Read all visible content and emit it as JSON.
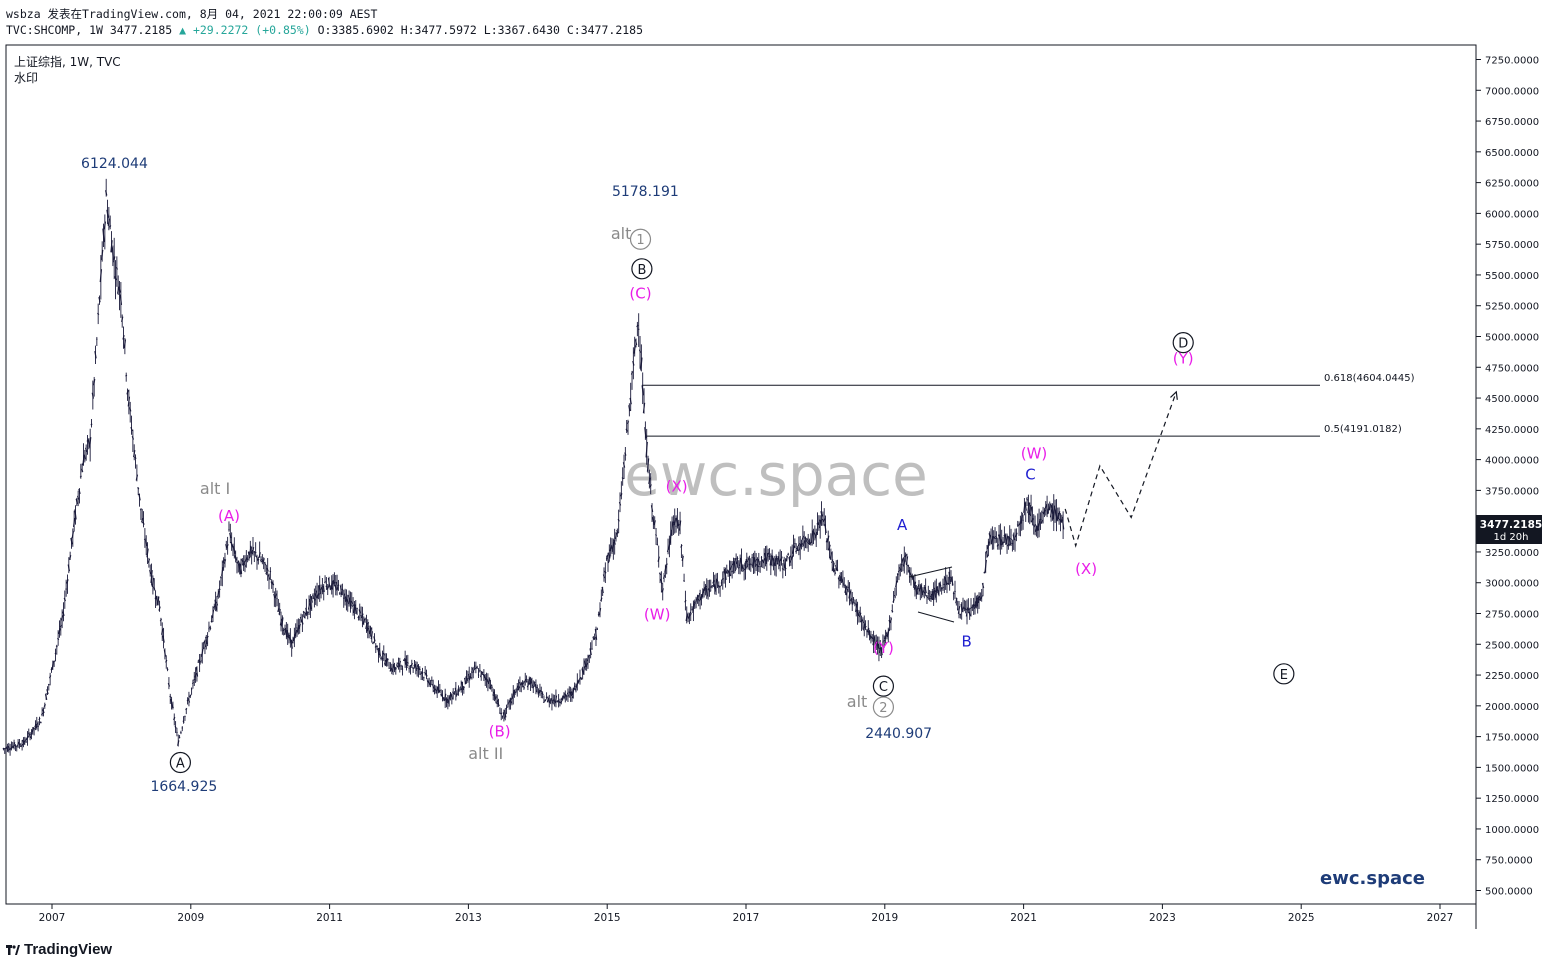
{
  "header": {
    "line1": "wsbza 发表在TradingView.com, 8月 04, 2021 22:00:09 AEST",
    "symbol": "TVC:SHCOMP, 1W 3477.2185",
    "change": "▲ +29.2272 (+0.85%)",
    "ohlc": "O:3385.6902 H:3477.5972 L:3367.6430 C:3477.2185"
  },
  "symbol_info": {
    "name": "上证综指, 1W, TVC",
    "watermark_label": "水印"
  },
  "watermark": "ewc.space",
  "brand_text": "ewc.space",
  "footer": {
    "logo": "TradingView"
  },
  "price_label": {
    "value": "3477.2185",
    "countdown": "1d 20h"
  },
  "colors": {
    "magenta": "#e91ee8",
    "blue": "#1f1fd1",
    "grey": "#8a8a8a",
    "navy": "#1e3c78",
    "candle": "#1a1a3a"
  },
  "chart_data": {
    "type": "line",
    "title": "",
    "y_axis": {
      "min": 500,
      "max": 7250,
      "ticks": [
        "7250.0000",
        "7000.0000",
        "6750.0000",
        "6500.0000",
        "6250.0000",
        "6000.0000",
        "5750.0000",
        "5500.0000",
        "5250.0000",
        "5000.0000",
        "4750.0000",
        "4500.0000",
        "4250.0000",
        "4000.0000",
        "3750.0000",
        "3500.0000",
        "3250.0000",
        "3000.0000",
        "2750.0000",
        "2500.0000",
        "2250.0000",
        "2000.0000",
        "1750.0000",
        "1500.0000",
        "1250.0000",
        "1000.0000",
        "750.0000",
        "500.0000"
      ]
    },
    "x_axis": {
      "ticks": [
        "2007",
        "2009",
        "2011",
        "2013",
        "2015",
        "2017",
        "2019",
        "2021",
        "2023",
        "2025",
        "2027"
      ]
    },
    "series": [
      {
        "values": [
          [
            2006.3,
            1650
          ],
          [
            2006.6,
            1700
          ],
          [
            2006.85,
            1900
          ],
          [
            2007.0,
            2300
          ],
          [
            2007.15,
            2700
          ],
          [
            2007.3,
            3400
          ],
          [
            2007.45,
            4000
          ],
          [
            2007.55,
            4150
          ],
          [
            2007.65,
            5000
          ],
          [
            2007.78,
            6124
          ],
          [
            2007.9,
            5600
          ],
          [
            2008.0,
            5300
          ],
          [
            2008.1,
            4500
          ],
          [
            2008.2,
            4000
          ],
          [
            2008.3,
            3500
          ],
          [
            2008.45,
            3000
          ],
          [
            2008.55,
            2800
          ],
          [
            2008.7,
            2100
          ],
          [
            2008.82,
            1700
          ],
          [
            2008.92,
            1950
          ],
          [
            2009.05,
            2200
          ],
          [
            2009.2,
            2500
          ],
          [
            2009.4,
            2900
          ],
          [
            2009.55,
            3400
          ],
          [
            2009.7,
            3100
          ],
          [
            2009.85,
            3250
          ],
          [
            2010.0,
            3200
          ],
          [
            2010.15,
            3050
          ],
          [
            2010.3,
            2700
          ],
          [
            2010.45,
            2500
          ],
          [
            2010.6,
            2700
          ],
          [
            2010.8,
            2900
          ],
          [
            2010.95,
            3000
          ],
          [
            2011.15,
            2950
          ],
          [
            2011.35,
            2800
          ],
          [
            2011.55,
            2650
          ],
          [
            2011.7,
            2450
          ],
          [
            2011.9,
            2300
          ],
          [
            2012.1,
            2350
          ],
          [
            2012.3,
            2300
          ],
          [
            2012.5,
            2150
          ],
          [
            2012.7,
            2050
          ],
          [
            2012.9,
            2150
          ],
          [
            2013.1,
            2300
          ],
          [
            2013.3,
            2200
          ],
          [
            2013.5,
            1900
          ],
          [
            2013.7,
            2150
          ],
          [
            2013.9,
            2200
          ],
          [
            2014.1,
            2050
          ],
          [
            2014.3,
            2050
          ],
          [
            2014.5,
            2100
          ],
          [
            2014.7,
            2350
          ],
          [
            2014.85,
            2600
          ],
          [
            2015.0,
            3200
          ],
          [
            2015.15,
            3400
          ],
          [
            2015.3,
            4300
          ],
          [
            2015.45,
            5178
          ],
          [
            2015.55,
            4200
          ],
          [
            2015.65,
            3600
          ],
          [
            2015.8,
            2950
          ],
          [
            2015.95,
            3500
          ],
          [
            2016.05,
            3450
          ],
          [
            2016.15,
            2700
          ],
          [
            2016.35,
            2900
          ],
          [
            2016.6,
            3000
          ],
          [
            2016.85,
            3150
          ],
          [
            2017.05,
            3150
          ],
          [
            2017.3,
            3200
          ],
          [
            2017.55,
            3150
          ],
          [
            2017.75,
            3300
          ],
          [
            2018.0,
            3400
          ],
          [
            2018.1,
            3550
          ],
          [
            2018.25,
            3150
          ],
          [
            2018.5,
            2900
          ],
          [
            2018.75,
            2600
          ],
          [
            2018.95,
            2440
          ],
          [
            2019.05,
            2600
          ],
          [
            2019.2,
            3100
          ],
          [
            2019.3,
            3200
          ],
          [
            2019.45,
            2950
          ],
          [
            2019.7,
            2900
          ],
          [
            2019.95,
            3050
          ],
          [
            2020.05,
            2800
          ],
          [
            2020.2,
            2750
          ],
          [
            2020.4,
            2900
          ],
          [
            2020.5,
            3350
          ],
          [
            2020.65,
            3350
          ],
          [
            2020.85,
            3350
          ],
          [
            2021.05,
            3650
          ],
          [
            2021.2,
            3450
          ],
          [
            2021.35,
            3600
          ],
          [
            2021.5,
            3550
          ],
          [
            2021.58,
            3477
          ]
        ]
      },
      {
        "name": "projection",
        "values": [
          [
            2021.6,
            3600
          ],
          [
            2021.75,
            3300
          ],
          [
            2022.1,
            3950
          ],
          [
            2022.55,
            3530
          ],
          [
            2023.2,
            4550
          ]
        ]
      }
    ],
    "hlines": [
      {
        "label": "0.618(4604.0445)",
        "y": 4604.0445,
        "x_from": 2015.5
      },
      {
        "label": "0.5(4191.0182)",
        "y": 4191.0182,
        "x_from": 2015.55
      }
    ],
    "annotations": [
      {
        "text": "6124.044",
        "x": 2007.9,
        "y": 6370,
        "kind": "price"
      },
      {
        "text": "1664.925",
        "x": 2008.9,
        "y": 1310,
        "kind": "price"
      },
      {
        "text": "5178.191",
        "x": 2015.55,
        "y": 6140,
        "kind": "price"
      },
      {
        "text": "2440.907",
        "x": 2019.2,
        "y": 1740,
        "kind": "price"
      },
      {
        "text": "A",
        "x": 2008.85,
        "y": 1540,
        "kind": "circle"
      },
      {
        "text": "B",
        "x": 2015.5,
        "y": 5550,
        "kind": "circle"
      },
      {
        "text": "C",
        "x": 2018.98,
        "y": 2160,
        "kind": "circle"
      },
      {
        "text": "D",
        "x": 2023.3,
        "y": 4950,
        "kind": "circle"
      },
      {
        "text": "E",
        "x": 2024.75,
        "y": 2260,
        "kind": "circle"
      },
      {
        "text": "alt",
        "x": 2015.2,
        "y": 5790,
        "kind": "grey"
      },
      {
        "text": "1",
        "x": 2015.48,
        "y": 5790,
        "kind": "greycircle"
      },
      {
        "text": "alt",
        "x": 2018.6,
        "y": 1990,
        "kind": "grey"
      },
      {
        "text": "2",
        "x": 2018.98,
        "y": 1990,
        "kind": "greycircle"
      },
      {
        "text": "alt I",
        "x": 2009.35,
        "y": 3720,
        "kind": "grey"
      },
      {
        "text": "alt II",
        "x": 2013.25,
        "y": 1570,
        "kind": "grey"
      },
      {
        "text": "(A)",
        "x": 2009.55,
        "y": 3500,
        "kind": "magenta"
      },
      {
        "text": "(B)",
        "x": 2013.45,
        "y": 1750,
        "kind": "magenta"
      },
      {
        "text": "(C)",
        "x": 2015.48,
        "y": 5310,
        "kind": "magenta"
      },
      {
        "text": "(X)",
        "x": 2016.0,
        "y": 3740,
        "kind": "magenta"
      },
      {
        "text": "(W)",
        "x": 2015.72,
        "y": 2700,
        "kind": "magenta"
      },
      {
        "text": "(Y)",
        "x": 2018.98,
        "y": 2430,
        "kind": "magenta"
      },
      {
        "text": "(W)",
        "x": 2021.15,
        "y": 4010,
        "kind": "magenta"
      },
      {
        "text": "(X)",
        "x": 2021.9,
        "y": 3070,
        "kind": "magenta"
      },
      {
        "text": "(Y)",
        "x": 2023.3,
        "y": 4780,
        "kind": "magenta"
      },
      {
        "text": "A",
        "x": 2019.25,
        "y": 3430,
        "kind": "blue"
      },
      {
        "text": "B",
        "x": 2020.18,
        "y": 2480,
        "kind": "blue"
      },
      {
        "text": "C",
        "x": 2021.1,
        "y": 3840,
        "kind": "blue"
      }
    ]
  }
}
